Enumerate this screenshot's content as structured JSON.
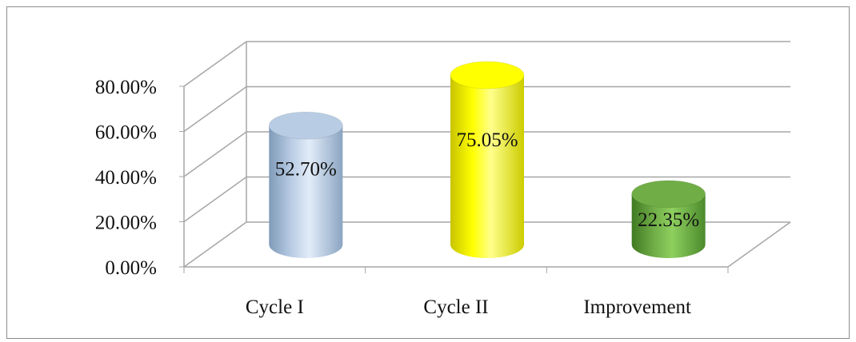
{
  "chart_data": {
    "type": "bar",
    "style": "3d-cylinder",
    "title": "",
    "xlabel": "",
    "ylabel": "",
    "categories": [
      "Cycle I",
      "Cycle II",
      "Improvement"
    ],
    "values": [
      52.7,
      75.05,
      22.35
    ],
    "data_labels": [
      "52.70%",
      "75.05%",
      "22.35%"
    ],
    "ylim": [
      0,
      80
    ],
    "yticks": [
      0,
      20,
      40,
      60,
      80
    ],
    "ytick_labels": [
      "0.00%",
      "20.00%",
      "40.00%",
      "60.00%",
      "80.00%"
    ],
    "grid": true,
    "legend": "none",
    "colors": {
      "series": [
        "#b8cce4",
        "#ffff00",
        "#70ad47"
      ],
      "gridline": "#a6a6a6",
      "frame": "#8c8c8c"
    }
  }
}
